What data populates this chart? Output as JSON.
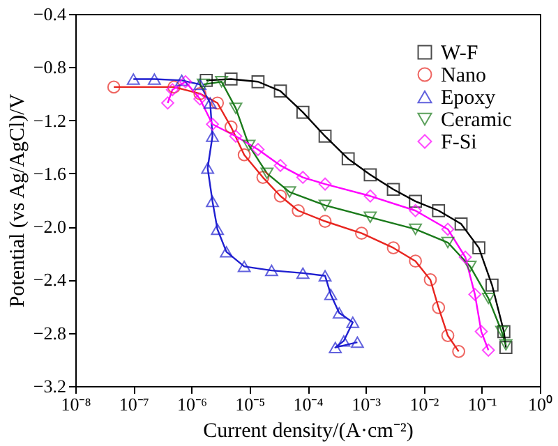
{
  "chart_data": {
    "type": "line",
    "xlabel": "Current density/(A·cm⁻²)",
    "ylabel": "Potential (vs Ag/AgCl)/V",
    "log": "x",
    "xlim": [
      1e-08,
      1
    ],
    "ylim": [
      -3.2,
      -0.4
    ],
    "xticks": [
      {
        "value": 1e-08,
        "label": "10⁻⁸"
      },
      {
        "value": 1e-07,
        "label": "10⁻⁷"
      },
      {
        "value": 1e-06,
        "label": "10⁻⁶"
      },
      {
        "value": 1e-05,
        "label": "10⁻⁵"
      },
      {
        "value": 0.0001,
        "label": "10⁻⁴"
      },
      {
        "value": 0.001,
        "label": "10⁻³"
      },
      {
        "value": 0.01,
        "label": "10⁻²"
      },
      {
        "value": 0.1,
        "label": "10⁻¹"
      },
      {
        "value": 1,
        "label": "10⁰"
      }
    ],
    "yticks": [
      {
        "value": -0.4,
        "label": "−0.4"
      },
      {
        "value": -0.8,
        "label": "−0.8"
      },
      {
        "value": -1.2,
        "label": "−1.2"
      },
      {
        "value": -1.6,
        "label": "−1.6"
      },
      {
        "value": -2.0,
        "label": "−2.0"
      },
      {
        "value": -2.4,
        "label": "−2.4"
      },
      {
        "value": -2.8,
        "label": "−2.8"
      },
      {
        "value": -3.2,
        "label": "−3.2"
      }
    ],
    "grid": false,
    "legend": "top right",
    "line_style": "solid",
    "series": [
      {
        "name": "W-F",
        "color": "#000000",
        "marker": "square",
        "x": [
          1.8e-06,
          4.8e-06,
          1.4e-05,
          3.4e-05,
          8.3e-05,
          0.0002,
          0.0005,
          0.0012,
          0.003,
          0.0072,
          0.018,
          0.044,
          0.089,
          0.15,
          0.24,
          0.26
        ],
        "values": [
          -0.9,
          -0.89,
          -0.91,
          -0.98,
          -1.14,
          -1.32,
          -1.49,
          -1.61,
          -1.72,
          -1.81,
          -1.88,
          -1.98,
          -2.16,
          -2.44,
          -2.79,
          -2.91
        ]
      },
      {
        "name": "Nano",
        "color": "#e8251f",
        "marker": "circle",
        "x": [
          4.6e-08,
          5e-07,
          1.4e-06,
          2.8e-06,
          4.8e-06,
          8.1e-06,
          1.7e-05,
          3.4e-05,
          6.9e-05,
          0.0002,
          0.00085,
          0.003,
          0.0072,
          0.013,
          0.018,
          0.026,
          0.04
        ],
        "values": [
          -0.95,
          -0.95,
          -1.0,
          -1.07,
          -1.25,
          -1.46,
          -1.63,
          -1.77,
          -1.88,
          -1.96,
          -2.05,
          -2.16,
          -2.26,
          -2.4,
          -2.61,
          -2.82,
          -2.94
        ]
      },
      {
        "name": "Epoxy",
        "color": "#1f1fd0",
        "marker": "triangle",
        "x": [
          1e-07,
          2.3e-07,
          6.8e-07,
          1.4e-06,
          2.1e-06,
          2.3e-06,
          1.9e-06,
          2.3e-06,
          2.8e-06,
          4e-06,
          8.1e-06,
          2.4e-05,
          8.3e-05,
          0.0002,
          0.00025,
          0.00035,
          0.0006,
          0.00042,
          0.0003,
          0.00072
        ],
        "values": [
          -0.89,
          -0.89,
          -0.9,
          -0.93,
          -1.07,
          -1.32,
          -1.56,
          -1.81,
          -2.02,
          -2.19,
          -2.3,
          -2.33,
          -2.35,
          -2.37,
          -2.51,
          -2.65,
          -2.72,
          -2.86,
          -2.91,
          -2.87
        ]
      },
      {
        "name": "Ceramic",
        "color": "#1a7a1a",
        "marker": "triangle-down",
        "x": [
          1.6e-06,
          3.3e-06,
          5.8e-06,
          9.8e-06,
          2e-05,
          4.9e-05,
          0.0002,
          0.0012,
          0.0072,
          0.026,
          0.063,
          0.13,
          0.22,
          0.26
        ],
        "values": [
          -0.93,
          -0.91,
          -1.11,
          -1.39,
          -1.6,
          -1.74,
          -1.84,
          -1.93,
          -2.02,
          -2.12,
          -2.3,
          -2.54,
          -2.79,
          -2.89
        ]
      },
      {
        "name": "F-Si",
        "color": "#ff00ff",
        "marker": "diamond",
        "x": [
          3.9e-07,
          4.7e-07,
          7.9e-07,
          1.4e-06,
          2.3e-06,
          5.8e-06,
          1.4e-05,
          3.4e-05,
          8.3e-05,
          0.0002,
          0.0012,
          0.0072,
          0.026,
          0.052,
          0.076,
          0.098,
          0.13
        ],
        "values": [
          -1.07,
          -0.97,
          -0.91,
          -1.04,
          -1.23,
          -1.32,
          -1.42,
          -1.54,
          -1.63,
          -1.68,
          -1.77,
          -1.88,
          -2.02,
          -2.23,
          -2.51,
          -2.79,
          -2.93
        ]
      }
    ]
  }
}
